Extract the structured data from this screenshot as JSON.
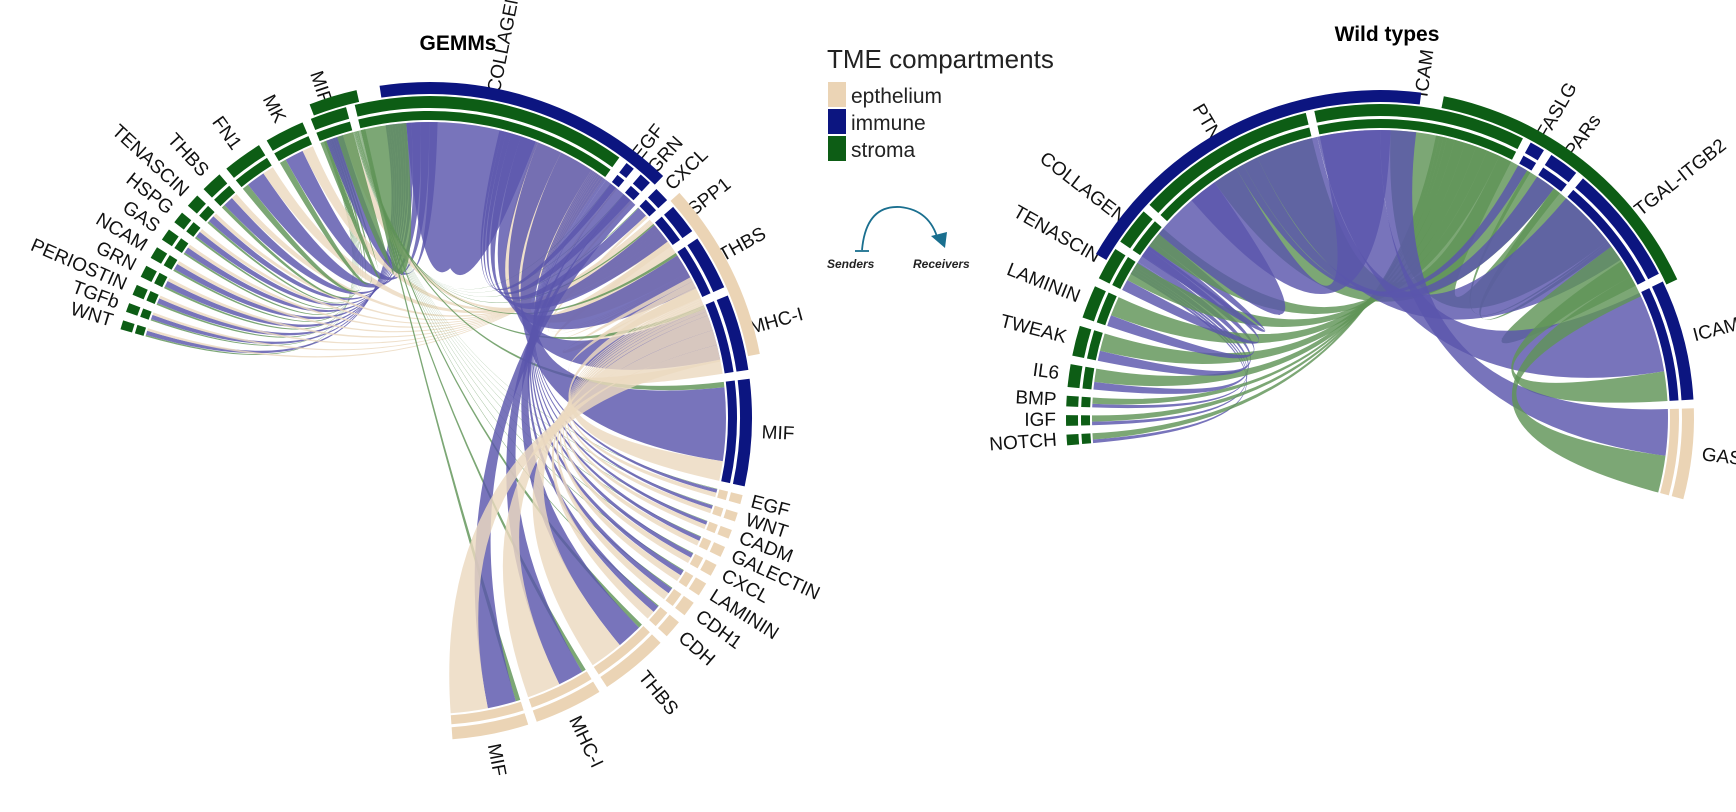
{
  "colors": {
    "epithelium": "#ebd4b5",
    "immune": "#0c1580",
    "stroma": "#0d5d15",
    "ribbon_stroma": "#5f9457",
    "ribbon_immune": "#5a56ac",
    "ribbon_epithelium": "#ecd9bf"
  },
  "legend": {
    "title": "TME compartments",
    "items": [
      {
        "label": "epthelium",
        "color": "#ebd4b5"
      },
      {
        "label": "immune",
        "color": "#0c1580"
      },
      {
        "label": "stroma",
        "color": "#0d5d15"
      }
    ]
  },
  "guide": {
    "senders": "Senders",
    "receivers": "Receivers",
    "color": "#1a6f8f"
  },
  "gemms": {
    "title": "GEMMs",
    "sectors": [
      {
        "label": "WNT",
        "type": "stroma",
        "width": 0.6
      },
      {
        "label": "TGFb",
        "type": "stroma",
        "width": 0.6
      },
      {
        "label": "PERIOSTIN",
        "type": "stroma",
        "width": 0.7
      },
      {
        "label": "GRN",
        "type": "stroma",
        "width": 0.8
      },
      {
        "label": "NCAM",
        "type": "stroma",
        "width": 0.8
      },
      {
        "label": "GAS",
        "type": "stroma",
        "width": 0.8
      },
      {
        "label": "HSPG",
        "type": "stroma",
        "width": 0.8
      },
      {
        "label": "TENASCIN",
        "type": "stroma",
        "width": 0.9
      },
      {
        "label": "THBS",
        "type": "stroma",
        "width": 1.4
      },
      {
        "label": "FN1",
        "type": "stroma",
        "width": 2.6
      },
      {
        "label": "MK",
        "type": "stroma",
        "width": 2.6
      },
      {
        "label": "MIF",
        "type": "stroma",
        "width": 2.4
      },
      {
        "label": "COLLAGEN",
        "type": "stroma",
        "width": 18
      },
      {
        "label": "EGF",
        "type": "immune",
        "width": 0.6
      },
      {
        "label": "GRN",
        "type": "immune",
        "width": 0.8
      },
      {
        "label": "CXCL",
        "type": "immune",
        "width": 1
      },
      {
        "label": "SPP1",
        "type": "immune",
        "width": 2
      },
      {
        "label": "THBS",
        "type": "immune",
        "width": 3.6
      },
      {
        "label": "MHC-I",
        "type": "immune",
        "width": 5
      },
      {
        "label": "MIF",
        "type": "immune",
        "width": 7
      },
      {
        "label": "EGF",
        "type": "epithelium",
        "width": 0.6
      },
      {
        "label": "WNT",
        "type": "epithelium",
        "width": 0.6
      },
      {
        "label": "CADM",
        "type": "epithelium",
        "width": 0.6
      },
      {
        "label": "GALECTIN",
        "type": "epithelium",
        "width": 0.7
      },
      {
        "label": "CXCL",
        "type": "epithelium",
        "width": 0.8
      },
      {
        "label": "LAMININ",
        "type": "epithelium",
        "width": 0.9
      },
      {
        "label": "CDH1",
        "type": "epithelium",
        "width": 1
      },
      {
        "label": "CDH",
        "type": "epithelium",
        "width": 1.2
      },
      {
        "label": "THBS",
        "type": "epithelium",
        "width": 4.5
      },
      {
        "label": "MHC-I",
        "type": "epithelium",
        "width": 4.5
      },
      {
        "label": "MIF",
        "type": "epithelium",
        "width": 5
      }
    ],
    "receivers": [
      {
        "type": "stroma",
        "width": 3.5
      },
      {
        "type": "immune",
        "width": 22
      },
      {
        "type": "epithelium",
        "width": 13
      }
    ]
  },
  "wild": {
    "title": "Wild types",
    "sectors": [
      {
        "label": "NOTCH",
        "type": "stroma",
        "width": 0.7
      },
      {
        "label": "IGF",
        "type": "stroma",
        "width": 0.7
      },
      {
        "label": "BMP",
        "type": "stroma",
        "width": 0.7
      },
      {
        "label": "IL6",
        "type": "stroma",
        "width": 1.5
      },
      {
        "label": "TWEAK",
        "type": "stroma",
        "width": 2
      },
      {
        "label": "LAMININ",
        "type": "stroma",
        "width": 2.2
      },
      {
        "label": "TENASCIN",
        "type": "stroma",
        "width": 2.2
      },
      {
        "label": "COLLAGEN",
        "type": "stroma",
        "width": 2.5
      },
      {
        "label": "PTN",
        "type": "stroma",
        "width": 12
      },
      {
        "label": "ICAM",
        "type": "stroma",
        "width": 14
      },
      {
        "label": "FASLG",
        "type": "immune",
        "width": 1
      },
      {
        "label": "PARs",
        "type": "immune",
        "width": 2
      },
      {
        "label": "ITGAL-ITGB2",
        "type": "immune",
        "width": 8
      },
      {
        "label": "ICAM",
        "type": "immune",
        "width": 8
      },
      {
        "label": "GAS",
        "type": "epithelium",
        "width": 6
      }
    ],
    "receivers": [
      {
        "type": "immune",
        "width": 30
      },
      {
        "type": "stroma",
        "width": 24
      }
    ]
  }
}
